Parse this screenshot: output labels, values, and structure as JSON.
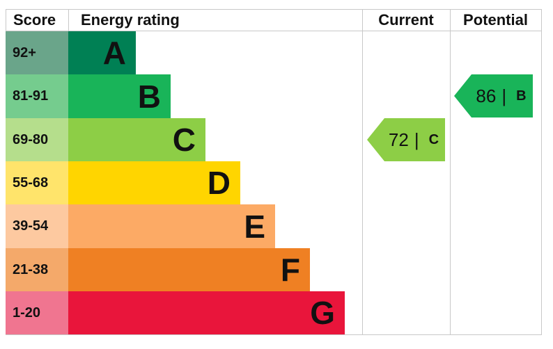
{
  "chart_data": {
    "type": "table",
    "headers": {
      "score": "Score",
      "rating": "Energy rating",
      "current": "Current",
      "potential": "Potential"
    },
    "bands": [
      {
        "letter": "A",
        "range": "92+",
        "color": "#008054",
        "score_color": "#6aa58a"
      },
      {
        "letter": "B",
        "range": "81-91",
        "color": "#19b459",
        "score_color": "#75cc8e"
      },
      {
        "letter": "C",
        "range": "69-80",
        "color": "#8dce46",
        "score_color": "#b5de8c"
      },
      {
        "letter": "D",
        "range": "55-68",
        "color": "#ffd500",
        "score_color": "#ffe46b"
      },
      {
        "letter": "E",
        "range": "39-54",
        "color": "#fcaa65",
        "score_color": "#fdc9a0"
      },
      {
        "letter": "F",
        "range": "21-38",
        "color": "#ef8023",
        "score_color": "#f4a96a"
      },
      {
        "letter": "G",
        "range": "1-20",
        "color": "#e9153b",
        "score_color": "#f07590"
      }
    ],
    "current": {
      "value": "72",
      "separator": "|",
      "band": "C"
    },
    "potential": {
      "value": "86",
      "separator": "|",
      "band": "B"
    }
  }
}
